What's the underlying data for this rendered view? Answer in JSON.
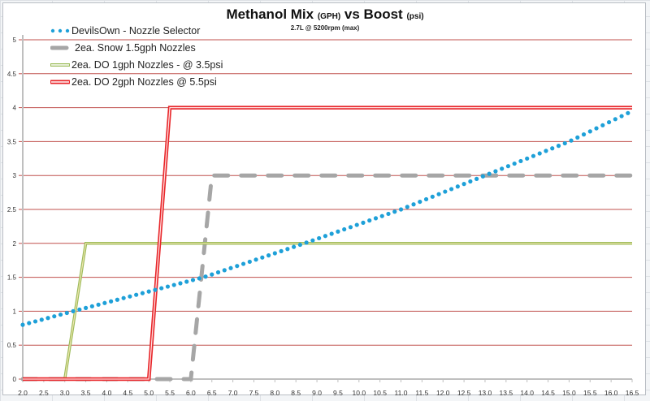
{
  "chart_data": {
    "type": "line",
    "title": "Methanol Mix",
    "title_unit": "(GPH)",
    "title_mid": "vs Boost",
    "title_unit2": "(psi)",
    "subtitle": "2.7L @ 5200rpm (max)",
    "xlabel": "",
    "ylabel": "",
    "xlim": [
      2.0,
      16.5
    ],
    "ylim": [
      0,
      5
    ],
    "grid": "horizontal",
    "legend_position": "top-left",
    "x_ticks": [
      "2.0",
      "2.5",
      "3.0",
      "3.5",
      "4.0",
      "4.5",
      "5.0",
      "5.5",
      "6.0",
      "6.5",
      "7.0",
      "7.5",
      "8.0",
      "8.5",
      "9.0",
      "9.5",
      "10.0",
      "10.5",
      "11.0",
      "11.5",
      "12.0",
      "12.5",
      "13.0",
      "13.5",
      "14.0",
      "14.5",
      "15.0",
      "15.5",
      "16.0",
      "16.5"
    ],
    "y_ticks": [
      "0",
      "0.5",
      "1",
      "1.5",
      "2",
      "2.5",
      "3",
      "3.5",
      "4",
      "4.5",
      "5"
    ],
    "series": [
      {
        "name": "DevilsOwn - Nozzle Selector",
        "style": "dotted",
        "color": "#1ea0d8",
        "x": [
          2.0,
          3.2,
          6.3,
          8.7,
          11.0,
          13.0,
          15.0,
          16.5
        ],
        "y": [
          0.8,
          1.0,
          1.5,
          2.0,
          2.5,
          3.0,
          3.5,
          3.95
        ]
      },
      {
        "name": "2ea. Snow 1.5gph Nozzles",
        "style": "dashed",
        "color": "#a6a6a6",
        "x": [
          2.0,
          6.0,
          6.5,
          16.5
        ],
        "y": [
          0,
          0,
          3,
          3
        ]
      },
      {
        "name": "2ea. DO 1gph Nozzles - @ 3.5psi",
        "style": "double-line",
        "color": "#9bbb59",
        "x": [
          3.0,
          3.5,
          16.5
        ],
        "y": [
          0,
          2,
          2
        ]
      },
      {
        "name": "2ea. DO 2gph Nozzles @ 5.5psi",
        "style": "double-line",
        "color": "#e8262a",
        "x": [
          2.0,
          5.0,
          5.5,
          16.5
        ],
        "y": [
          0,
          0,
          4,
          4
        ]
      }
    ]
  },
  "gridline_color": "#c0504d",
  "axis_color": "#bfbfbf"
}
